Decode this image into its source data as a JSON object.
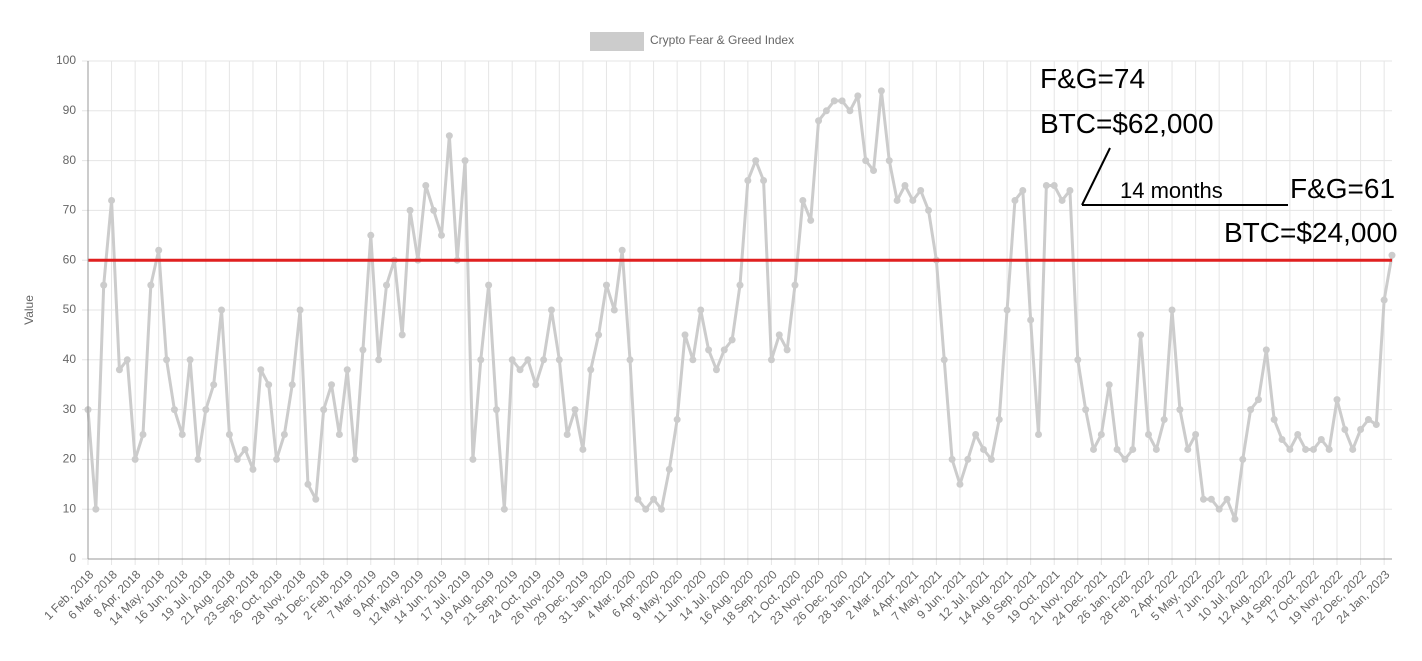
{
  "chart_data": {
    "type": "line",
    "legend": "Crypto Fear & Greed Index",
    "y_label": "Value",
    "color": "#cccccc",
    "grid": true,
    "ylim": [
      0,
      100
    ],
    "yticks": [
      0,
      10,
      20,
      30,
      40,
      50,
      60,
      70,
      80,
      90,
      100
    ],
    "reference_line": {
      "value": 60,
      "color": "#e02020"
    },
    "annotations": [
      "F&G=74",
      "BTC=$62,000",
      "14 months",
      "F&G=61",
      "BTC=$24,000"
    ],
    "categories": [
      "1 Feb, 2018",
      null,
      null,
      "6 Mar, 2018",
      null,
      null,
      "8 Apr, 2018",
      null,
      null,
      "14 May, 2018",
      null,
      null,
      "16 Jun, 2018",
      null,
      null,
      "19 Jul, 2018",
      null,
      null,
      "21 Aug, 2018",
      null,
      null,
      "23 Sep, 2018",
      null,
      null,
      "26 Oct, 2018",
      null,
      null,
      "28 Nov, 2018",
      null,
      null,
      "31 Dec, 2018",
      null,
      null,
      "2 Feb, 2019",
      null,
      null,
      "7 Mar, 2019",
      null,
      null,
      "9 Apr, 2019",
      null,
      null,
      "12 May, 2019",
      null,
      null,
      "14 Jun, 2019",
      null,
      null,
      "17 Jul, 2019",
      null,
      null,
      "19 Aug, 2019",
      null,
      null,
      "21 Sep, 2019",
      null,
      null,
      "24 Oct, 2019",
      null,
      null,
      "26 Nov, 2019",
      null,
      null,
      "29 Dec, 2019",
      null,
      null,
      "31 Jan, 2020",
      null,
      null,
      "4 Mar, 2020",
      null,
      null,
      "6 Apr, 2020",
      null,
      null,
      "9 May, 2020",
      null,
      null,
      "11 Jun, 2020",
      null,
      null,
      "14 Jul, 2020",
      null,
      null,
      "16 Aug, 2020",
      null,
      null,
      "18 Sep, 2020",
      null,
      null,
      "21 Oct, 2020",
      null,
      null,
      "23 Nov, 2020",
      null,
      null,
      "26 Dec, 2020",
      null,
      null,
      "28 Jan, 2021",
      null,
      null,
      "2 Mar, 2021",
      null,
      null,
      "4 Apr, 2021",
      null,
      null,
      "7 May, 2021",
      null,
      null,
      "9 Jun, 2021",
      null,
      null,
      "12 Jul, 2021",
      null,
      null,
      "14 Aug, 2021",
      null,
      null,
      "16 Sep, 2021",
      null,
      null,
      "19 Oct, 2021",
      null,
      null,
      "21 Nov, 2021",
      null,
      null,
      "24 Dec, 2021",
      null,
      null,
      "26 Jan, 2022",
      null,
      null,
      "28 Feb, 2022",
      null,
      null,
      "2 Apr, 2022",
      null,
      null,
      "5 May, 2022",
      null,
      null,
      "7 Jun, 2022",
      null,
      null,
      "10 Jul, 2022",
      null,
      null,
      "12 Aug, 2022",
      null,
      null,
      "14 Sep, 2022",
      null,
      null,
      "17 Oct, 2022",
      null,
      null,
      "19 Nov, 2022",
      null,
      null,
      "22 Dec, 2022",
      null,
      null,
      "24 Jan, 2023",
      null
    ],
    "values": [
      30,
      10,
      55,
      72,
      38,
      40,
      20,
      25,
      55,
      62,
      40,
      30,
      25,
      40,
      20,
      30,
      35,
      50,
      25,
      20,
      22,
      18,
      38,
      35,
      20,
      25,
      35,
      50,
      15,
      12,
      30,
      35,
      25,
      38,
      20,
      42,
      65,
      40,
      55,
      60,
      45,
      70,
      60,
      75,
      70,
      65,
      85,
      60,
      80,
      20,
      40,
      55,
      30,
      10,
      40,
      38,
      40,
      35,
      40,
      50,
      40,
      25,
      30,
      22,
      38,
      45,
      55,
      50,
      62,
      40,
      12,
      10,
      12,
      10,
      18,
      28,
      45,
      40,
      50,
      42,
      38,
      42,
      44,
      55,
      76,
      80,
      76,
      40,
      45,
      42,
      55,
      72,
      68,
      88,
      90,
      92,
      92,
      90,
      93,
      80,
      78,
      94,
      80,
      72,
      75,
      72,
      74,
      70,
      60,
      40,
      20,
      15,
      20,
      25,
      22,
      20,
      28,
      50,
      72,
      74,
      48,
      25,
      75,
      75,
      72,
      74,
      40,
      30,
      22,
      25,
      35,
      22,
      20,
      22,
      45,
      25,
      22,
      28,
      50,
      30,
      22,
      25,
      12,
      12,
      10,
      12,
      8,
      20,
      30,
      32,
      42,
      28,
      24,
      22,
      25,
      22,
      22,
      24,
      22,
      32,
      26,
      22,
      26,
      28,
      27,
      52,
      61
    ]
  }
}
